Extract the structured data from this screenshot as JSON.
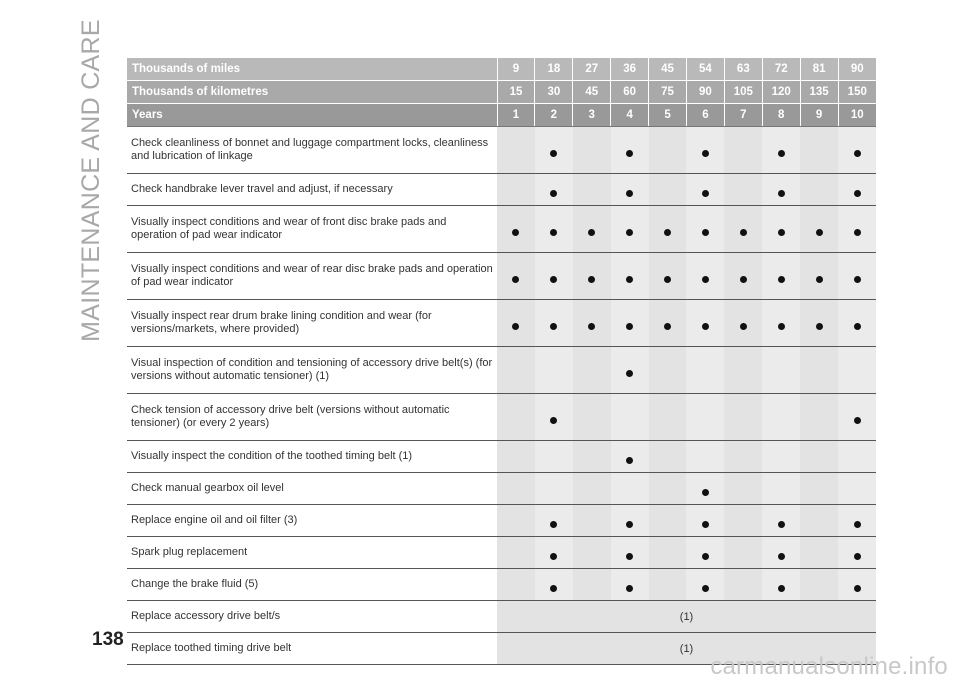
{
  "side_title": "MAINTENANCE AND CARE",
  "page_number": "138",
  "watermark": "carmanualsonline.info",
  "header": {
    "miles_label": "Thousands of miles",
    "miles": [
      "9",
      "18",
      "27",
      "36",
      "45",
      "54",
      "63",
      "72",
      "81",
      "90"
    ],
    "km_label": "Thousands of kilometres",
    "km": [
      "15",
      "30",
      "45",
      "60",
      "75",
      "90",
      "105",
      "120",
      "135",
      "150"
    ],
    "years_label": "Years",
    "years": [
      "1",
      "2",
      "3",
      "4",
      "5",
      "6",
      "7",
      "8",
      "9",
      "10"
    ]
  },
  "rows": [
    {
      "text": "Check cleanliness of bonnet and luggage compartment locks, cleanliness and lubrication of linkage",
      "marks": [
        false,
        true,
        false,
        true,
        false,
        true,
        false,
        true,
        false,
        true
      ]
    },
    {
      "text": "Check handbrake lever travel and adjust, if necessary",
      "marks": [
        false,
        true,
        false,
        true,
        false,
        true,
        false,
        true,
        false,
        true
      ]
    },
    {
      "text": "Visually inspect conditions and wear of front disc brake pads and operation of pad wear indicator",
      "marks": [
        true,
        true,
        true,
        true,
        true,
        true,
        true,
        true,
        true,
        true
      ]
    },
    {
      "text": "Visually inspect conditions and wear of rear disc brake pads and operation of pad wear indicator",
      "marks": [
        true,
        true,
        true,
        true,
        true,
        true,
        true,
        true,
        true,
        true
      ]
    },
    {
      "text": "Visually inspect rear drum brake lining condition and wear (for versions/markets, where provided)",
      "marks": [
        true,
        true,
        true,
        true,
        true,
        true,
        true,
        true,
        true,
        true
      ]
    },
    {
      "text": "Visual inspection of condition and tensioning of accessory drive belt(s) (for versions without automatic tensioner) (1)",
      "marks": [
        false,
        false,
        false,
        true,
        false,
        false,
        false,
        false,
        false,
        false
      ]
    },
    {
      "text": "Check tension of accessory drive belt (versions without automatic tensioner) (or every 2 years)",
      "marks": [
        false,
        true,
        false,
        false,
        false,
        false,
        false,
        false,
        false,
        true
      ]
    },
    {
      "text": "Visually inspect the condition of the toothed timing belt (1)",
      "marks": [
        false,
        false,
        false,
        true,
        false,
        false,
        false,
        false,
        false,
        false
      ]
    },
    {
      "text": "Check manual gearbox oil level",
      "marks": [
        false,
        false,
        false,
        false,
        false,
        true,
        false,
        false,
        false,
        false
      ]
    },
    {
      "text": "Replace engine oil and oil filter (3)",
      "marks": [
        false,
        true,
        false,
        true,
        false,
        true,
        false,
        true,
        false,
        true
      ]
    },
    {
      "text": "Spark plug replacement",
      "marks": [
        false,
        true,
        false,
        true,
        false,
        true,
        false,
        true,
        false,
        true
      ]
    },
    {
      "text": "Change the brake fluid (5)",
      "marks": [
        false,
        true,
        false,
        true,
        false,
        true,
        false,
        true,
        false,
        true
      ]
    },
    {
      "text": "Replace accessory drive belt/s",
      "note": "(1)"
    },
    {
      "text": "Replace toothed timing drive belt",
      "note": "(1)"
    }
  ]
}
